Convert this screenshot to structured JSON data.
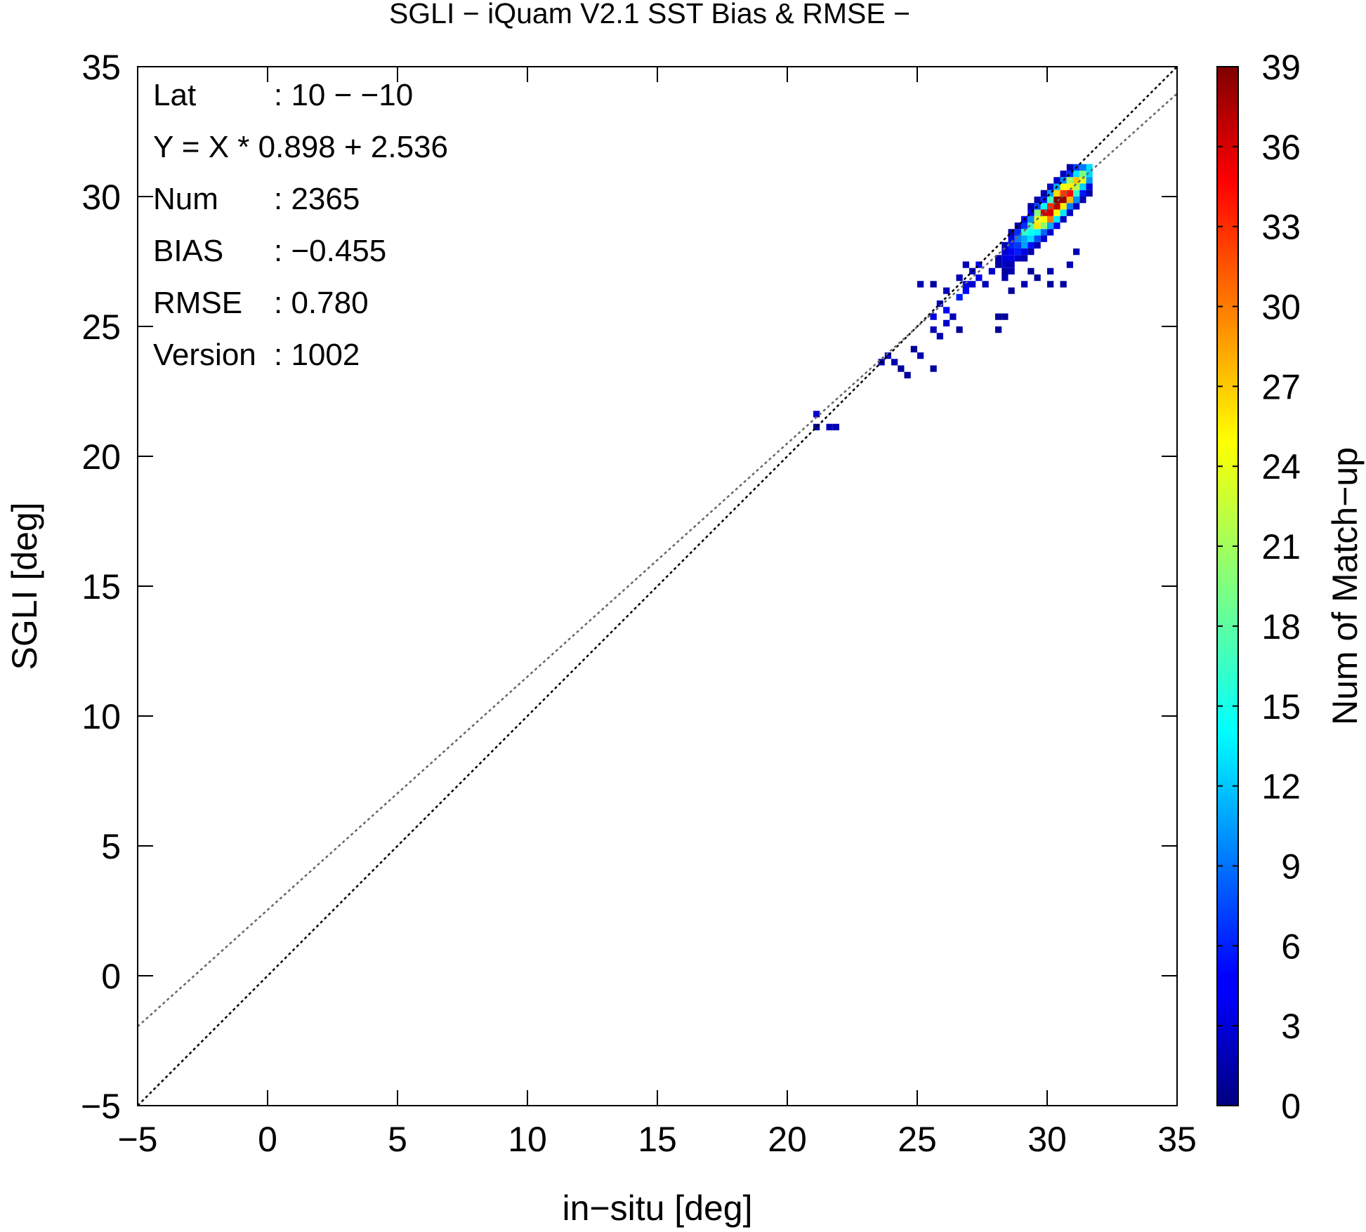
{
  "chart_data": {
    "type": "heatmap",
    "title": "SGLI − iQuam V2.1 SST Bias & RMSE  −",
    "xlabel": "in−situ [deg]",
    "ylabel": "SGLI [deg]",
    "xlim": [
      -5,
      35
    ],
    "ylim": [
      -5,
      35
    ],
    "x_ticks": [
      -5,
      0,
      5,
      10,
      15,
      20,
      25,
      30,
      35
    ],
    "y_ticks": [
      -5,
      0,
      5,
      10,
      15,
      20,
      25,
      30,
      35
    ],
    "x_tick_labels": [
      "−5",
      "0",
      "5",
      "10",
      "15",
      "20",
      "25",
      "30",
      "35"
    ],
    "y_tick_labels": [
      "−5",
      "0",
      "5",
      "10",
      "15",
      "20",
      "25",
      "30",
      "35"
    ],
    "grid": false,
    "colorbar": {
      "label": "Num of Match−up",
      "range": [
        0,
        39
      ],
      "ticks": [
        0,
        3,
        6,
        9,
        12,
        15,
        18,
        21,
        24,
        27,
        30,
        33,
        36,
        39
      ],
      "tick_labels": [
        "0",
        "3",
        "6",
        "9",
        "12",
        "15",
        "18",
        "21",
        "24",
        "27",
        "30",
        "33",
        "36",
        "39"
      ],
      "colormap": "jet"
    },
    "stats": [
      {
        "key": "Lat",
        "value": ": 10 − −10"
      },
      {
        "key": "Y = X * 0.898 + 2.536",
        "value": ""
      },
      {
        "key": "Num",
        "value": ": 2365"
      },
      {
        "key": "BIAS",
        "value": ": −0.455"
      },
      {
        "key": "RMSE",
        "value": ": 0.780"
      },
      {
        "key": "Version",
        "value": ": 1002"
      }
    ],
    "lines": [
      {
        "kind": "one-to-one",
        "slope": 1,
        "intercept": 0,
        "color": "#000000",
        "dash": "dotted"
      },
      {
        "kind": "regression",
        "slope": 0.898,
        "intercept": 2.536,
        "color": "#666666",
        "dash": "dotted"
      }
    ],
    "bin_size": 0.25,
    "density_ridge": {
      "x_start": 27.3,
      "x_end": 31.7,
      "peak_x": 30.3,
      "peak_count": 39,
      "slope": 1.0,
      "intercept": -0.5
    },
    "sparse_points": [
      [
        21.1,
        21.5,
        3
      ],
      [
        21.6,
        21.1,
        2
      ],
      [
        21.9,
        21.1,
        2
      ],
      [
        21.2,
        21.1,
        1
      ],
      [
        23.8,
        23.9,
        3
      ],
      [
        24.1,
        23.6,
        2
      ],
      [
        23.6,
        23.6,
        2
      ],
      [
        24.3,
        23.3,
        1
      ],
      [
        24.6,
        23.1,
        1
      ],
      [
        25.2,
        23.8,
        2
      ],
      [
        25.5,
        23.3,
        1
      ],
      [
        24.8,
        24.1,
        1
      ],
      [
        25.5,
        24.9,
        2
      ],
      [
        25.9,
        24.6,
        2
      ],
      [
        26.1,
        25.1,
        3
      ],
      [
        25.7,
        25.3,
        4
      ],
      [
        26.2,
        25.6,
        5
      ],
      [
        25.8,
        25.9,
        3
      ],
      [
        26.4,
        25.4,
        2
      ],
      [
        26.6,
        24.9,
        1
      ],
      [
        25.1,
        26.6,
        2
      ],
      [
        25.6,
        26.6,
        1
      ],
      [
        26.0,
        26.4,
        2
      ],
      [
        26.6,
        26.1,
        6
      ],
      [
        26.9,
        26.3,
        5
      ],
      [
        26.8,
        26.6,
        4
      ],
      [
        27.1,
        26.5,
        3
      ],
      [
        26.5,
        26.9,
        2
      ],
      [
        27.4,
        26.9,
        4
      ],
      [
        27.1,
        27.1,
        3
      ],
      [
        26.9,
        27.4,
        2
      ],
      [
        27.4,
        27.4,
        5
      ],
      [
        28.1,
        24.9,
        1
      ],
      [
        28.1,
        25.3,
        1
      ],
      [
        28.4,
        25.3,
        1
      ],
      [
        28.6,
        26.3,
        1
      ],
      [
        29.1,
        26.6,
        2
      ],
      [
        29.6,
        26.9,
        1
      ],
      [
        30.1,
        26.7,
        1
      ],
      [
        30.6,
        26.7,
        1
      ],
      [
        30.1,
        27.1,
        2
      ],
      [
        29.4,
        27.1,
        1
      ],
      [
        27.6,
        26.7,
        2
      ],
      [
        28.3,
        26.9,
        2
      ],
      [
        30.8,
        27.4,
        2
      ],
      [
        31.1,
        27.9,
        2
      ],
      [
        28.6,
        27.1,
        2
      ],
      [
        27.9,
        27.1,
        3
      ]
    ]
  }
}
